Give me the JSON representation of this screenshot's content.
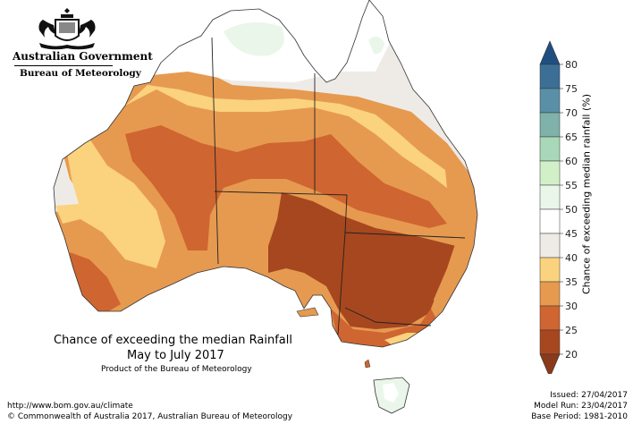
{
  "header": {
    "government": "Australian Government",
    "agency": "Bureau of Meteorology"
  },
  "map": {
    "title_line1": "Chance of exceeding the median Rainfall",
    "title_line2": "May to July 2017",
    "subtitle": "Product of the Bureau of Meteorology"
  },
  "legend": {
    "title": "Chance of exceeding median rainfall (%)",
    "ticks": [
      "80",
      "75",
      "70",
      "65",
      "60",
      "55",
      "50",
      "45",
      "40",
      "35",
      "30",
      "25",
      "20"
    ],
    "colors": {
      "c75_80": "#3c6f96",
      "c70_75": "#5a8fa8",
      "c65_70": "#7fb2a8",
      "c60_65": "#a8d8b8",
      "c55_60": "#d2f0c8",
      "c50_55": "#eaf6ea",
      "c45_50": "#ffffff",
      "c40_45": "#eeebe7",
      "c35_40": "#fbd27e",
      "c30_35": "#e69a50",
      "c25_30": "#cf6530",
      "c20_25": "#a7471f",
      "top_arrow": "#1f4f80",
      "bottom_arrow": "#8a3a1a"
    }
  },
  "footer": {
    "url": "http://www.bom.gov.au/climate",
    "copyright": "© Commonwealth of Australia 2017, Australian Bureau of Meteorology",
    "issued": "Issued: 27/04/2017",
    "model_run": "Model Run: 23/04/2017",
    "base_period": "Base Period: 1981-2010"
  }
}
